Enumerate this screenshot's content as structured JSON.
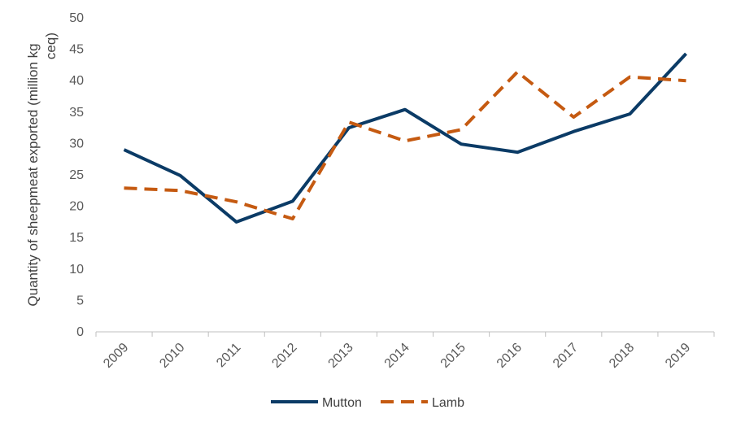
{
  "chart_data": {
    "type": "line",
    "title": "",
    "xlabel": "",
    "ylabel": "Quantity of sheepmeat exported (million kg ceq)",
    "ylim": [
      0,
      50
    ],
    "yticks": [
      0,
      5,
      10,
      15,
      20,
      25,
      30,
      35,
      40,
      45,
      50
    ],
    "grid": false,
    "legend_position": "bottom",
    "categories": [
      "2009",
      "2010",
      "2011",
      "2012",
      "2013",
      "2014",
      "2015",
      "2016",
      "2017",
      "2018",
      "2019"
    ],
    "series": [
      {
        "name": "Mutton",
        "color": "#0b3b66",
        "style": "solid",
        "values": [
          29.0,
          24.9,
          17.5,
          20.8,
          32.5,
          35.4,
          29.9,
          28.6,
          31.9,
          34.7,
          44.3
        ]
      },
      {
        "name": "Lamb",
        "color": "#c55a11",
        "style": "dashed",
        "values": [
          22.9,
          22.5,
          20.7,
          18.0,
          33.4,
          30.4,
          32.2,
          41.4,
          34.2,
          40.6,
          40.0
        ]
      }
    ]
  }
}
